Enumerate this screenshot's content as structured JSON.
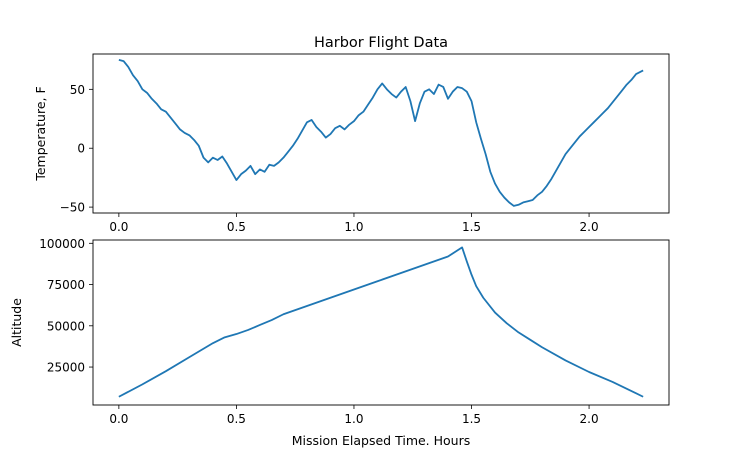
{
  "chart_data": [
    {
      "type": "line",
      "title": "Harbor Flight Data",
      "xlabel": "",
      "ylabel": "Temperature, F",
      "xlim": [
        -0.11,
        2.34
      ],
      "ylim": [
        -55,
        80
      ],
      "xticks": [
        0.0,
        0.5,
        1.0,
        1.5,
        2.0
      ],
      "xtick_labels": [
        "0.0",
        "0.5",
        "1.0",
        "1.5",
        "2.0"
      ],
      "yticks": [
        -50,
        0,
        50
      ],
      "ytick_labels": [
        "−50",
        "0",
        "50"
      ],
      "grid": false,
      "color": "#1f77b4",
      "series": [
        {
          "x": [
            0.0,
            0.02,
            0.04,
            0.06,
            0.08,
            0.1,
            0.12,
            0.14,
            0.16,
            0.18,
            0.2,
            0.22,
            0.24,
            0.26,
            0.28,
            0.3,
            0.32,
            0.34,
            0.36,
            0.38,
            0.4,
            0.42,
            0.44,
            0.46,
            0.48,
            0.5,
            0.52,
            0.54,
            0.56,
            0.58,
            0.6,
            0.62,
            0.64,
            0.66,
            0.68,
            0.7,
            0.72,
            0.74,
            0.76,
            0.78,
            0.8,
            0.82,
            0.84,
            0.86,
            0.88,
            0.9,
            0.92,
            0.94,
            0.96,
            0.98,
            1.0,
            1.02,
            1.04,
            1.06,
            1.08,
            1.1,
            1.12,
            1.14,
            1.16,
            1.18,
            1.2,
            1.22,
            1.24,
            1.26,
            1.28,
            1.3,
            1.32,
            1.34,
            1.36,
            1.38,
            1.4,
            1.42,
            1.44,
            1.46,
            1.48,
            1.5,
            1.52,
            1.54,
            1.56,
            1.58,
            1.6,
            1.62,
            1.64,
            1.66,
            1.68,
            1.7,
            1.72,
            1.74,
            1.76,
            1.78,
            1.8,
            1.82,
            1.84,
            1.86,
            1.88,
            1.9,
            1.92,
            1.94,
            1.96,
            1.98,
            2.0,
            2.02,
            2.04,
            2.06,
            2.08,
            2.1,
            2.12,
            2.14,
            2.16,
            2.18,
            2.2,
            2.23
          ],
          "y": [
            75,
            74,
            69,
            62,
            57,
            50,
            47,
            42,
            38,
            33,
            31,
            26,
            21,
            16,
            13,
            11,
            7,
            2,
            -8,
            -12,
            -8,
            -10,
            -7,
            -13,
            -20,
            -27,
            -22,
            -19,
            -15,
            -22,
            -18,
            -20,
            -14,
            -15,
            -12,
            -8,
            -3,
            2,
            8,
            15,
            22,
            24,
            18,
            14,
            9,
            12,
            17,
            19,
            16,
            20,
            23,
            28,
            31,
            37,
            43,
            50,
            55,
            50,
            46,
            43,
            48,
            52,
            40,
            23,
            38,
            48,
            50,
            46,
            54,
            52,
            42,
            48,
            52,
            51,
            48,
            40,
            22,
            8,
            -5,
            -20,
            -30,
            -37,
            -42,
            -46,
            -49,
            -48,
            -46,
            -45,
            -44,
            -40,
            -37,
            -32,
            -26,
            -19,
            -12,
            -5,
            0,
            5,
            10,
            14,
            18,
            22,
            26,
            30,
            34,
            39,
            44,
            49,
            54,
            58,
            63,
            66
          ]
        }
      ]
    },
    {
      "type": "line",
      "title": "",
      "xlabel": "Mission Elapsed Time. Hours",
      "ylabel": "Altitude",
      "xlim": [
        -0.11,
        2.34
      ],
      "ylim": [
        2000,
        102000
      ],
      "xticks": [
        0.0,
        0.5,
        1.0,
        1.5,
        2.0
      ],
      "xtick_labels": [
        "0.0",
        "0.5",
        "1.0",
        "1.5",
        "2.0"
      ],
      "yticks": [
        25000,
        50000,
        75000,
        100000
      ],
      "ytick_labels": [
        "25000",
        "50000",
        "75000",
        "100000"
      ],
      "grid": false,
      "color": "#1f77b4",
      "series": [
        {
          "x": [
            0.0,
            0.1,
            0.2,
            0.3,
            0.4,
            0.45,
            0.5,
            0.55,
            0.6,
            0.65,
            0.7,
            0.8,
            0.9,
            1.0,
            1.1,
            1.2,
            1.3,
            1.4,
            1.46,
            1.48,
            1.5,
            1.52,
            1.55,
            1.6,
            1.65,
            1.7,
            1.75,
            1.8,
            1.9,
            2.0,
            2.1,
            2.23
          ],
          "y": [
            7000,
            14500,
            22500,
            31000,
            39500,
            43000,
            45000,
            47500,
            50500,
            53500,
            57000,
            62000,
            67000,
            72000,
            77000,
            82000,
            87000,
            92000,
            97500,
            89000,
            81000,
            74000,
            67000,
            58000,
            51500,
            46000,
            41500,
            37000,
            29000,
            22000,
            16000,
            7000
          ]
        }
      ]
    }
  ]
}
